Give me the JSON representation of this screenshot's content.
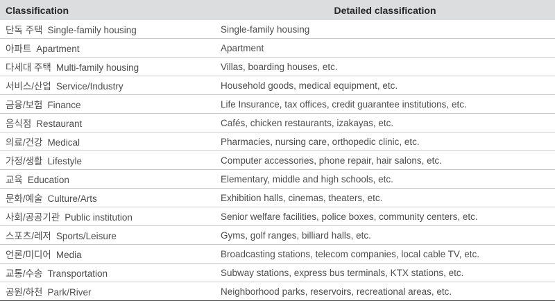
{
  "table": {
    "header": {
      "classification": "Classification",
      "detailed": "Detailed classification"
    },
    "rows": [
      {
        "ko": "단독 주택",
        "en": "Single-family housing",
        "detail": "Single-family housing"
      },
      {
        "ko": "아파트",
        "en": "Apartment",
        "detail": "Apartment"
      },
      {
        "ko": "다세대 주택",
        "en": "Multi-family housing",
        "detail": "Villas, boarding houses, etc."
      },
      {
        "ko": "서비스/산업",
        "en": "Service/Industry",
        "detail": "Household goods, medical equipment, etc."
      },
      {
        "ko": "금융/보험",
        "en": "Finance",
        "detail": "Life Insurance, tax offices, credit guarantee institutions, etc."
      },
      {
        "ko": "음식점",
        "en": "Restaurant",
        "detail": "Cafés, chicken restaurants, izakayas, etc."
      },
      {
        "ko": "의료/건강",
        "en": "Medical",
        "detail": "Pharmacies, nursing care, orthopedic clinic, etc."
      },
      {
        "ko": "가정/생활",
        "en": "Lifestyle",
        "detail": "Computer accessories, phone repair, hair salons, etc."
      },
      {
        "ko": "교육",
        "en": "Education",
        "detail": "Elementary, middle and high schools, etc."
      },
      {
        "ko": "문화/예술",
        "en": "Culture/Arts",
        "detail": "Exhibition halls, cinemas, theaters, etc."
      },
      {
        "ko": "사회/공공기관",
        "en": "Public institution",
        "detail": "Senior welfare facilities, police boxes, community centers, etc."
      },
      {
        "ko": "스포츠/레저",
        "en": "Sports/Leisure",
        "detail": "Gyms, golf ranges, billiard halls, etc."
      },
      {
        "ko": "언론/미디어",
        "en": "Media",
        "detail": "Broadcasting stations, telecom companies, local cable TV, etc."
      },
      {
        "ko": "교통/수송",
        "en": "Transportation",
        "detail": "Subway stations, express bus terminals, KTX stations, etc."
      },
      {
        "ko": "공원/하천",
        "en": "Park/River",
        "detail": "Neighborhood parks, reservoirs, recreational areas, etc."
      }
    ]
  },
  "colors": {
    "background": "#ffffff",
    "header_bg": "#dcddde",
    "header_text": "#262626",
    "body_text": "#4d4d4d",
    "row_divider": "#cbcbcb",
    "bottom_border": "#4a4a4a"
  }
}
